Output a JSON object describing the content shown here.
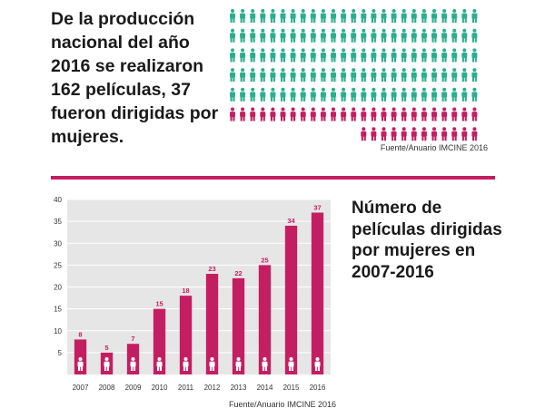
{
  "headline": "De la producción nacional del año 2016 se realizaron 162 películas, 37 fueron dirigidas por mujeres.",
  "pictogram": {
    "total": 162,
    "highlighted": 37,
    "color_default": "#2bae8e",
    "color_highlight": "#c41e62",
    "icon": "person-icon"
  },
  "source_top": "Fuente/Anuario IMCINE 2016",
  "side_title": "Número de películas dirigidas por mujeres en 2007-2016",
  "source_bottom": "Fuente/Anuario IMCINE 2016",
  "chart_data": {
    "type": "bar",
    "categories": [
      "2007",
      "2008",
      "2009",
      "2010",
      "2011",
      "2012",
      "2013",
      "2014",
      "2015",
      "2016"
    ],
    "values": [
      8,
      5,
      7,
      15,
      18,
      23,
      22,
      25,
      34,
      37
    ],
    "data_labels": [
      "8",
      "5",
      "7",
      "15",
      "18",
      "23",
      "22",
      "25",
      "34",
      "37"
    ],
    "ylim": [
      0,
      40
    ],
    "yticks": [
      5,
      10,
      15,
      20,
      25,
      30,
      35,
      40
    ],
    "grid": true,
    "bar_color": "#c41e62",
    "label_color": "#c41e62",
    "background_color": "#e6e6e6",
    "bar_icon": "person-icon"
  }
}
